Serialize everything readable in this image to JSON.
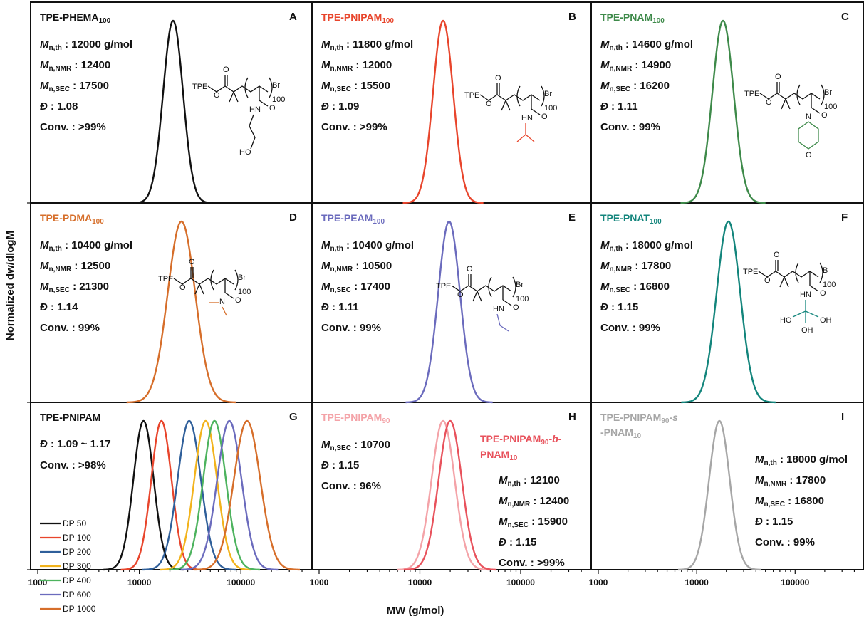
{
  "chart_data": [
    {
      "type": "line",
      "panel": "A",
      "title": "TPE-PHEMA",
      "title_sub": "100",
      "color": "#111111",
      "xlim": [
        1000,
        500000
      ],
      "xscale": "log",
      "info": [
        {
          "label": "M",
          "sub": "n,th",
          "value": ": 12000 g/mol"
        },
        {
          "label": "M",
          "sub": "n,NMR",
          "value": ": 12400"
        },
        {
          "label": "M",
          "sub": "n,SEC",
          "value": ": 17500"
        },
        {
          "label": "Đ",
          "sub": "",
          "value": ": 1.08"
        },
        {
          "label": "Conv.",
          "sub": "",
          "value": ": >99%"
        }
      ],
      "series": [
        {
          "peak": 21500,
          "sigma": 0.098
        }
      ],
      "chem": {
        "tpe": "TPE",
        "br": "Br",
        "dp": "100",
        "nh": "HN",
        "o": "O",
        "oh": "HO"
      }
    },
    {
      "type": "line",
      "panel": "B",
      "title": "TPE-PNIPAM",
      "title_sub": "100",
      "color": "#e8452c",
      "xlim": [
        1000,
        500000
      ],
      "xscale": "log",
      "info": [
        {
          "label": "M",
          "sub": "n,th",
          "value": ": 11800 g/mol"
        },
        {
          "label": "M",
          "sub": "n,NMR",
          "value": ": 12000"
        },
        {
          "label": "M",
          "sub": "n,SEC",
          "value": ": 15500"
        },
        {
          "label": "Đ",
          "sub": "",
          "value": ": 1.09"
        },
        {
          "label": "Conv.",
          "sub": "",
          "value": ": >99%"
        }
      ],
      "series": [
        {
          "peak": 17000,
          "sigma": 0.1
        }
      ],
      "chem": {
        "tpe": "TPE",
        "br": "Br",
        "dp": "100",
        "nh": "HN",
        "o": "O"
      }
    },
    {
      "type": "line",
      "panel": "C",
      "title": "TPE-PNAM",
      "title_sub": "100",
      "color": "#3e8a4a",
      "xlim": [
        1000,
        500000
      ],
      "xscale": "log",
      "info": [
        {
          "label": "M",
          "sub": "n,th",
          "value": ": 14600 g/mol"
        },
        {
          "label": "M",
          "sub": "n,NMR",
          "value": ": 14900"
        },
        {
          "label": "M",
          "sub": "n,SEC",
          "value": ": 16200"
        },
        {
          "label": "Đ",
          "sub": "",
          "value": ": 1.11"
        },
        {
          "label": "Conv.",
          "sub": "",
          "value": ": 99%"
        }
      ],
      "series": [
        {
          "peak": 18500,
          "sigma": 0.108
        }
      ],
      "chem": {
        "tpe": "TPE",
        "br": "Br",
        "dp": "100",
        "n": "N",
        "o": "O"
      }
    },
    {
      "type": "line",
      "panel": "D",
      "title": "TPE-PDMA",
      "title_sub": "100",
      "color": "#d66e2a",
      "xlim": [
        1000,
        500000
      ],
      "xscale": "log",
      "info": [
        {
          "label": "M",
          "sub": "n,th",
          "value": ": 10400 g/mol"
        },
        {
          "label": "M",
          "sub": "n,NMR",
          "value": ": 12500"
        },
        {
          "label": "M",
          "sub": "n,SEC",
          "value": ": 21300"
        },
        {
          "label": "Đ",
          "sub": "",
          "value": ": 1.14"
        },
        {
          "label": "Conv.",
          "sub": "",
          "value": ": 99%"
        }
      ],
      "series": [
        {
          "peak": 26000,
          "sigma": 0.135
        }
      ],
      "chem": {
        "tpe": "TPE",
        "br": "Br",
        "dp": "100",
        "n": "N",
        "o": "O"
      }
    },
    {
      "type": "line",
      "panel": "E",
      "title": "TPE-PEAM",
      "title_sub": "100",
      "color": "#6b6bbd",
      "xlim": [
        1000,
        500000
      ],
      "xscale": "log",
      "info": [
        {
          "label": "M",
          "sub": "n,th",
          "value": ": 10400 g/mol"
        },
        {
          "label": "M",
          "sub": "n,NMR",
          "value": ": 10500"
        },
        {
          "label": "M",
          "sub": "n,SEC",
          "value": ": 17400"
        },
        {
          "label": "Đ",
          "sub": "",
          "value": ": 1.11"
        },
        {
          "label": "Conv.",
          "sub": "",
          "value": ": 99%"
        }
      ],
      "series": [
        {
          "peak": 19500,
          "sigma": 0.108
        }
      ],
      "chem": {
        "tpe": "TPE",
        "br": "Br",
        "dp": "100",
        "nh": "HN",
        "o": "O"
      }
    },
    {
      "type": "line",
      "panel": "F",
      "title": "TPE-PNAT",
      "title_sub": "100",
      "color": "#13857c",
      "xlim": [
        1000,
        500000
      ],
      "xscale": "log",
      "info": [
        {
          "label": "M",
          "sub": "n,th",
          "value": ": 18000 g/mol"
        },
        {
          "label": "M",
          "sub": "n,NMR",
          "value": ": 17800"
        },
        {
          "label": "M",
          "sub": "n,SEC",
          "value": ": 16800"
        },
        {
          "label": "Đ",
          "sub": "",
          "value": ": 1.15"
        },
        {
          "label": "Conv.",
          "sub": "",
          "value": ": 99%"
        }
      ],
      "series": [
        {
          "peak": 21000,
          "sigma": 0.12
        }
      ],
      "chem": {
        "tpe": "TPE",
        "br": "B",
        "dp": "100",
        "nh": "HN",
        "o": "O",
        "oh1": "HO",
        "oh2": "OH",
        "oh3": "OH"
      }
    },
    {
      "type": "line",
      "panel": "G",
      "title": "TPE-PNIPAM",
      "title_sub": "",
      "color": "#111111",
      "xlim": [
        1000,
        500000
      ],
      "xscale": "log",
      "info": [
        {
          "label": "Đ",
          "sub": "",
          "value": ": 1.09 ~ 1.17"
        },
        {
          "label": "Conv.",
          "sub": "",
          "value": ": >98%"
        }
      ],
      "legend": "left",
      "series": [
        {
          "name": "DP 50",
          "color": "#111111",
          "peak": 11000,
          "sigma": 0.1
        },
        {
          "name": "DP 100",
          "color": "#e8452c",
          "peak": 16500,
          "sigma": 0.1
        },
        {
          "name": "DP 200",
          "color": "#2f5f9a",
          "peak": 31000,
          "sigma": 0.115
        },
        {
          "name": "DP 300",
          "color": "#f2b31c",
          "peak": 45000,
          "sigma": 0.112
        },
        {
          "name": "DP 400",
          "color": "#4db35e",
          "peak": 55000,
          "sigma": 0.112
        },
        {
          "name": "DP 600",
          "color": "#6b6bbd",
          "peak": 77000,
          "sigma": 0.12
        },
        {
          "name": "DP 1000",
          "color": "#d66e2a",
          "peak": 115000,
          "sigma": 0.13
        }
      ]
    },
    {
      "type": "line",
      "panel": "H",
      "title": "TPE-PNIPAM",
      "title_sub": "90",
      "color": "#f4a3a8",
      "xlim": [
        1000,
        500000
      ],
      "xscale": "log",
      "info": [
        {
          "label": "M",
          "sub": "n,SEC",
          "value": ": 10700"
        },
        {
          "label": "Đ",
          "sub": "",
          "value": ": 1.15"
        },
        {
          "label": "Conv.",
          "sub": "",
          "value": ": 96%"
        }
      ],
      "title2_a": "TPE-PNIPAM",
      "title2_sub": "90",
      "title2_b": "-",
      "title2_ital": "b",
      "title2_c": "-",
      "title2_d": "PNAM",
      "title2_sub2": "10",
      "color2": "#e8525c",
      "info2": [
        {
          "label": "M",
          "sub": "n,th",
          "value": ": 12100"
        },
        {
          "label": "M",
          "sub": "n,NMR",
          "value": ": 12400"
        },
        {
          "label": "M",
          "sub": "n,SEC",
          "value": ": 15900"
        },
        {
          "label": "Đ",
          "sub": "",
          "value": ": 1.15"
        },
        {
          "label": "Conv.",
          "sub": "",
          "value": ": >99%"
        }
      ],
      "series": [
        {
          "color": "#f4a3a8",
          "peak": 17000,
          "sigma": 0.115
        },
        {
          "color": "#e8525c",
          "peak": 20000,
          "sigma": 0.115
        }
      ]
    },
    {
      "type": "line",
      "panel": "I",
      "title": "TPE-PNIPAM",
      "title_sub": "90",
      "title_suffix": "-s",
      "title_line2": "-PNAM",
      "title_line2_sub": "10",
      "color": "#a6a6a6",
      "xlim": [
        1000,
        500000
      ],
      "xscale": "log",
      "info": [
        {
          "label": "M",
          "sub": "n,th",
          "value": ": 18000 g/mol"
        },
        {
          "label": "M",
          "sub": "n,NMR",
          "value": ": 17800"
        },
        {
          "label": "M",
          "sub": "n,SEC",
          "value": ": 16800"
        },
        {
          "label": "Đ",
          "sub": "",
          "value": ": 1.15"
        },
        {
          "label": "Conv.",
          "sub": "",
          "value": ": 99%"
        }
      ],
      "series": [
        {
          "peak": 17000,
          "sigma": 0.105
        }
      ]
    }
  ],
  "axes": {
    "xlabel": "MW (g/mol)",
    "ylabel": "Normalized dw/dlogM",
    "xticks": [
      {
        "value": 1000,
        "label": "1000"
      },
      {
        "value": 10000,
        "label": "10000"
      },
      {
        "value": 100000,
        "label": "100000"
      }
    ]
  }
}
